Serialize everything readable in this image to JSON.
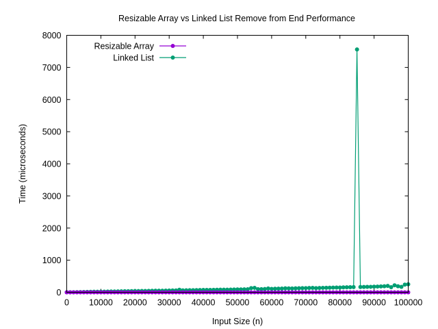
{
  "chart_data": {
    "type": "line",
    "title": "Resizable Array vs Linked List Remove from End Performance",
    "xlabel": "Input Size (n)",
    "ylabel": "Time (microseconds)",
    "xlim": [
      0,
      100000
    ],
    "ylim": [
      0,
      8000
    ],
    "x_ticks": [
      0,
      10000,
      20000,
      30000,
      40000,
      50000,
      60000,
      70000,
      80000,
      90000,
      100000
    ],
    "y_ticks": [
      0,
      1000,
      2000,
      3000,
      4000,
      5000,
      6000,
      7000,
      8000
    ],
    "grid": false,
    "legend_position": "top-left",
    "x": [
      0,
      1000,
      2000,
      3000,
      4000,
      5000,
      6000,
      7000,
      8000,
      9000,
      10000,
      11000,
      12000,
      13000,
      14000,
      15000,
      16000,
      17000,
      18000,
      19000,
      20000,
      21000,
      22000,
      23000,
      24000,
      25000,
      26000,
      27000,
      28000,
      29000,
      30000,
      31000,
      32000,
      33000,
      34000,
      35000,
      36000,
      37000,
      38000,
      39000,
      40000,
      41000,
      42000,
      43000,
      44000,
      45000,
      46000,
      47000,
      48000,
      49000,
      50000,
      51000,
      52000,
      53000,
      54000,
      55000,
      56000,
      57000,
      58000,
      59000,
      60000,
      61000,
      62000,
      63000,
      64000,
      65000,
      66000,
      67000,
      68000,
      69000,
      70000,
      71000,
      72000,
      73000,
      74000,
      75000,
      76000,
      77000,
      78000,
      79000,
      80000,
      81000,
      82000,
      83000,
      84000,
      85000,
      86000,
      87000,
      88000,
      89000,
      90000,
      91000,
      92000,
      93000,
      94000,
      95000,
      96000,
      97000,
      98000,
      99000,
      100000
    ],
    "series": [
      {
        "name": "Resizable Array",
        "color": "#9400d3",
        "values": [
          0,
          0,
          0,
          0,
          0,
          0,
          0,
          0,
          0,
          0,
          0,
          0,
          0,
          0,
          0,
          0,
          0,
          0,
          0,
          0,
          0,
          0,
          0,
          0,
          0,
          0,
          0,
          0,
          0,
          0,
          0,
          0,
          0,
          0,
          0,
          0,
          0,
          0,
          0,
          0,
          0,
          0,
          0,
          0,
          0,
          0,
          0,
          0,
          0,
          0,
          0,
          0,
          0,
          0,
          0,
          0,
          0,
          0,
          0,
          0,
          0,
          0,
          0,
          0,
          0,
          0,
          0,
          0,
          0,
          0,
          0,
          0,
          0,
          0,
          0,
          0,
          0,
          0,
          0,
          0,
          0,
          0,
          0,
          0,
          0,
          0,
          0,
          0,
          0,
          0,
          0,
          0,
          0,
          0,
          0,
          0,
          0,
          0,
          0,
          0,
          0
        ]
      },
      {
        "name": "Linked List",
        "color": "#009e73",
        "values": [
          2,
          3,
          4,
          6,
          8,
          12,
          14,
          16,
          18,
          20,
          20,
          22,
          24,
          26,
          28,
          30,
          32,
          34,
          36,
          38,
          40,
          40,
          42,
          44,
          46,
          48,
          50,
          50,
          52,
          54,
          56,
          58,
          60,
          80,
          62,
          64,
          66,
          68,
          70,
          72,
          74,
          74,
          76,
          78,
          80,
          82,
          84,
          84,
          86,
          88,
          90,
          92,
          94,
          96,
          130,
          140,
          98,
          100,
          105,
          120,
          108,
          112,
          115,
          118,
          125,
          122,
          120,
          125,
          128,
          130,
          132,
          135,
          138,
          130,
          135,
          140,
          142,
          145,
          148,
          150,
          150,
          155,
          158,
          160,
          162,
          7560,
          165,
          168,
          170,
          172,
          175,
          180,
          185,
          190,
          200,
          160,
          220,
          190,
          170,
          240,
          250
        ]
      }
    ]
  }
}
